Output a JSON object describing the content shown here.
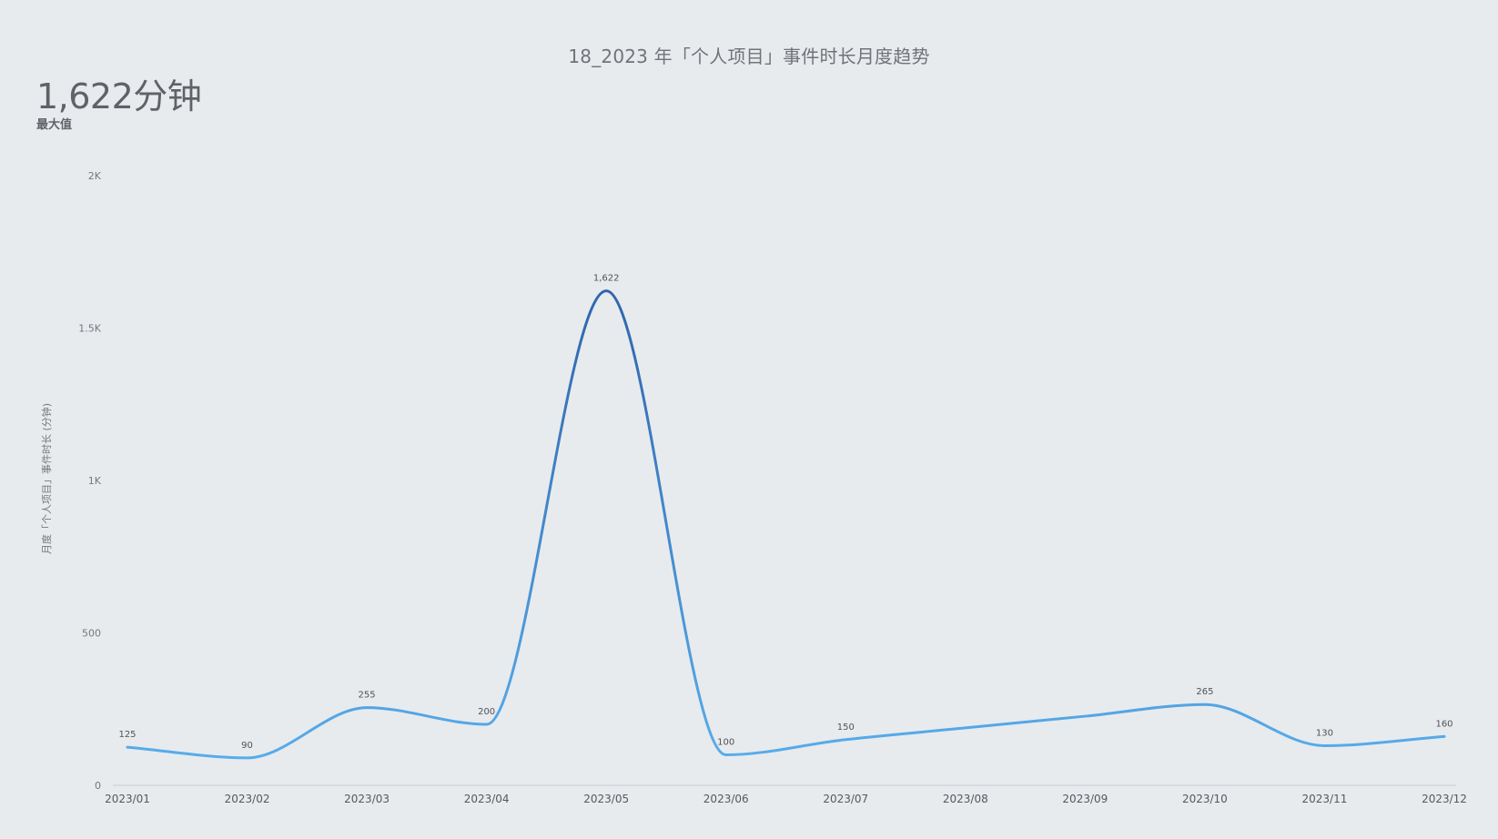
{
  "title": "18_2023 年「个人项目」事件时长月度趋势",
  "kpi": {
    "value": "1,622分钟",
    "label": "最大值"
  },
  "chart_data": {
    "type": "line",
    "title": "18_2023 年「个人项目」事件时长月度趋势",
    "xlabel": "",
    "ylabel": "月度「个人项目」事件时长 (分钟)",
    "categories": [
      "2023/01",
      "2023/02",
      "2023/03",
      "2023/04",
      "2023/05",
      "2023/06",
      "2023/07",
      "2023/08",
      "2023/09",
      "2023/10",
      "2023/11",
      "2023/12"
    ],
    "series": [
      {
        "values": [
          125,
          90,
          255,
          200,
          1622,
          100,
          150,
          null,
          null,
          265,
          130,
          160
        ],
        "labels": [
          "125",
          "90",
          "255",
          "200",
          "1,622",
          "100",
          "150",
          "",
          "",
          "265",
          "130",
          "160"
        ]
      }
    ],
    "ylim": [
      0,
      2000
    ],
    "yticks": [
      0,
      500,
      1000,
      1500,
      2000
    ],
    "ytick_labels": [
      "0",
      "500",
      "1K",
      "1.5K",
      "2K"
    ],
    "grid": false,
    "legend": "none",
    "colors": {
      "line_low": "#5ab0ee",
      "line_high": "#2f65ab",
      "axis": "#c9cdd1"
    }
  }
}
